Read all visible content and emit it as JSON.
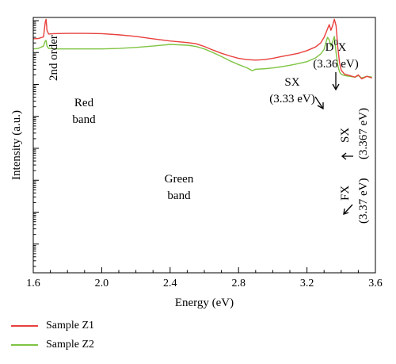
{
  "chart_data": {
    "type": "line",
    "xlabel": "Energy (eV)",
    "ylabel": "Intensity (a.u.)",
    "xlim": [
      1.6,
      3.6
    ],
    "ylog": true,
    "xticks": [
      "1.6",
      "2.0",
      "2.4",
      "2.8",
      "3.2",
      "3.6"
    ],
    "grid": false,
    "legend_position": "bottom-left",
    "series": [
      {
        "name": "Sample Z1",
        "color": "#e8403c",
        "x": [
          1.6,
          1.63,
          1.66,
          1.67,
          1.675,
          1.68,
          1.69,
          1.72,
          1.8,
          1.9,
          2.0,
          2.1,
          2.2,
          2.3,
          2.4,
          2.5,
          2.55,
          2.6,
          2.65,
          2.7,
          2.75,
          2.8,
          2.85,
          2.9,
          2.95,
          3.0,
          3.05,
          3.1,
          3.15,
          3.2,
          3.25,
          3.28,
          3.3,
          3.32,
          3.33,
          3.34,
          3.35,
          3.36,
          3.37,
          3.38,
          3.39,
          3.4,
          3.42,
          3.45,
          3.48,
          3.5,
          3.52,
          3.55,
          3.58
        ],
        "values": [
          2.7,
          2.75,
          3.1,
          9.0,
          11.0,
          5.0,
          3.8,
          3.9,
          4.0,
          4.0,
          3.9,
          3.6,
          3.2,
          2.7,
          2.3,
          2.05,
          1.9,
          1.55,
          1.2,
          0.95,
          0.78,
          0.66,
          0.6,
          0.58,
          0.6,
          0.66,
          0.75,
          0.84,
          0.95,
          1.15,
          1.5,
          2.0,
          3.0,
          5.5,
          7.5,
          5.0,
          7.0,
          11.0,
          7.0,
          1.5,
          0.5,
          0.28,
          0.21,
          0.19,
          0.17,
          0.2,
          0.15,
          0.18,
          0.16
        ]
      },
      {
        "name": "Sample Z2",
        "color": "#7fc442",
        "x": [
          1.6,
          1.63,
          1.66,
          1.67,
          1.675,
          1.68,
          1.69,
          1.72,
          1.8,
          1.9,
          2.0,
          2.1,
          2.2,
          2.3,
          2.4,
          2.5,
          2.55,
          2.6,
          2.65,
          2.7,
          2.75,
          2.8,
          2.85,
          2.88,
          2.9,
          2.95,
          3.0,
          3.05,
          3.1,
          3.15,
          3.2,
          3.25,
          3.28,
          3.3,
          3.31,
          3.32,
          3.33,
          3.34,
          3.35,
          3.36,
          3.37,
          3.38,
          3.39,
          3.4,
          3.42,
          3.45,
          3.48,
          3.5,
          3.52,
          3.55,
          3.58
        ],
        "values": [
          1.3,
          1.35,
          1.6,
          2.3,
          2.4,
          1.6,
          1.35,
          1.3,
          1.3,
          1.3,
          1.3,
          1.35,
          1.45,
          1.6,
          1.8,
          1.7,
          1.55,
          1.3,
          1.0,
          0.75,
          0.55,
          0.42,
          0.33,
          0.27,
          0.3,
          0.31,
          0.33,
          0.36,
          0.4,
          0.45,
          0.52,
          0.68,
          0.9,
          1.25,
          2.0,
          3.0,
          2.5,
          1.6,
          2.2,
          3.2,
          1.0,
          0.4,
          0.25,
          0.21,
          0.19,
          0.18,
          0.17,
          0.19,
          0.16,
          0.18,
          0.17
        ]
      }
    ],
    "annotations": {
      "second_order": "2nd order",
      "red_band_line1": "Red",
      "red_band_line2": "band",
      "green_band_line1": "Green",
      "green_band_line2": "band",
      "sx_left": "SX",
      "sx_left_ev": "(3.33 eV)",
      "d0x_base": "D",
      "d0x_sup": "0",
      "d0x_tail": "X",
      "d0x_ev": "(3.36 eV)",
      "sx_right": "SX",
      "sx_right_ev": "(3.367 eV)",
      "fx": "FX",
      "fx_ev": "(3.37 eV)"
    }
  }
}
